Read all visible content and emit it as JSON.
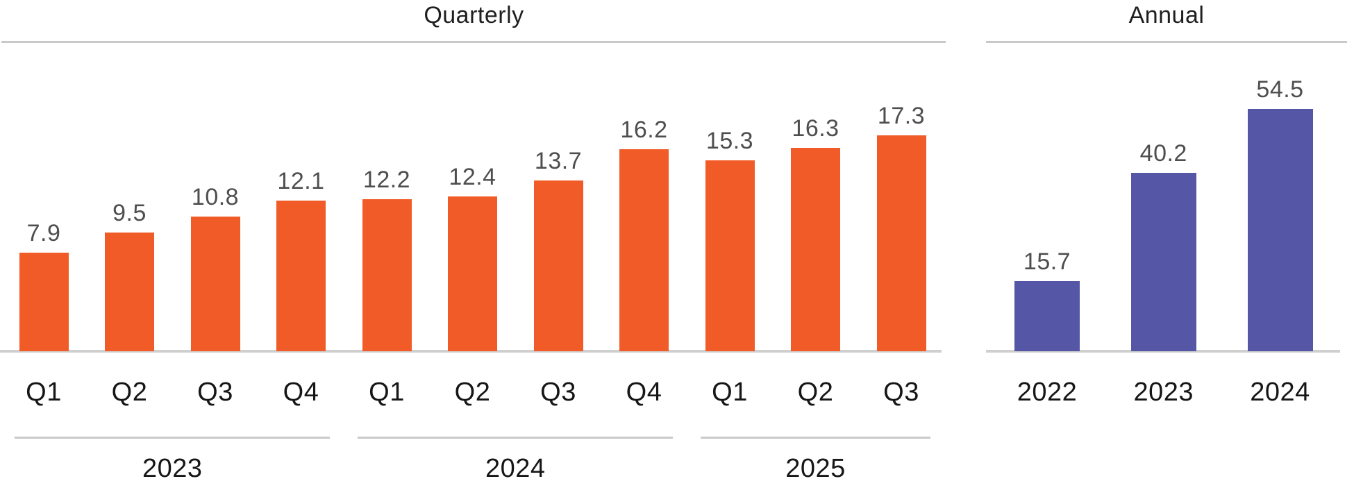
{
  "colors": {
    "quarterly_bar": "#F15B27",
    "annual_bar": "#5556A5",
    "grid_line": "#C9C9C9",
    "value_label": "#4E4E4E",
    "axis_label": "#161616",
    "title": "#1F1F1F"
  },
  "chart_data": [
    {
      "type": "bar",
      "title": "Quarterly",
      "categories": [
        "Q1",
        "Q2",
        "Q3",
        "Q4",
        "Q1",
        "Q2",
        "Q3",
        "Q4",
        "Q1",
        "Q2",
        "Q3"
      ],
      "values": [
        7.9,
        9.5,
        10.8,
        12.1,
        12.2,
        12.4,
        13.7,
        16.2,
        15.3,
        16.3,
        17.3
      ],
      "groups": [
        {
          "label": "2023",
          "count": 4
        },
        {
          "label": "2024",
          "count": 4
        },
        {
          "label": "2025",
          "count": 3
        }
      ],
      "bar_color": "#F15B27",
      "data_labels": true,
      "grid": false,
      "legend": "none",
      "ylim": [
        0,
        24.9
      ]
    },
    {
      "type": "bar",
      "title": "Annual",
      "categories": [
        "2022",
        "2023",
        "2024"
      ],
      "values": [
        15.7,
        40.2,
        54.5
      ],
      "groups": [],
      "bar_color": "#5556A5",
      "data_labels": true,
      "grid": false,
      "legend": "none",
      "ylim": [
        0,
        69.8
      ]
    }
  ]
}
